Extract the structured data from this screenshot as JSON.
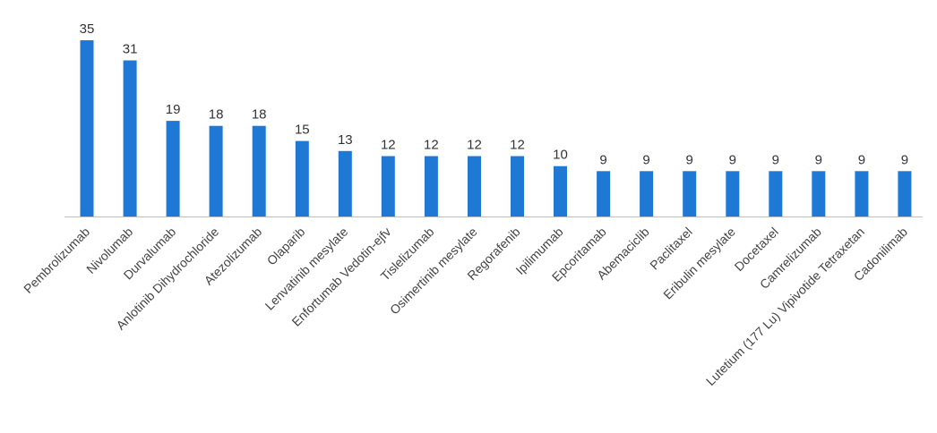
{
  "chart_data": {
    "type": "bar",
    "categories": [
      "Pembrolizumab",
      "Nivolumab",
      "Durvalumab",
      "Anlotinib Dihydrochloride",
      "Atezolizumab",
      "Olaparib",
      "Lenvatinib mesylate",
      "Enfortumab Vedotin-ejfv",
      "Tislelizumab",
      "Osimertinib mesylate",
      "Regorafenib",
      "Ipilimumab",
      "Epcoritamab",
      "Abemaciclib",
      "Paclitaxel",
      "Eribulin mesylate",
      "Docetaxel",
      "Camrelizumab",
      "Lutetium (177 Lu) Vipivotide Tetraxetan",
      "Cadonilimab"
    ],
    "values": [
      35,
      31,
      19,
      18,
      18,
      15,
      13,
      12,
      12,
      12,
      12,
      10,
      9,
      9,
      9,
      9,
      9,
      9,
      9,
      9
    ],
    "title": "",
    "xlabel": "",
    "ylabel": "",
    "ylim": [
      0,
      35
    ],
    "grid": false,
    "legend": "none",
    "colors": {
      "bar": "#1f78d4",
      "axis": "#bfbfbf",
      "text": "#333333"
    }
  }
}
